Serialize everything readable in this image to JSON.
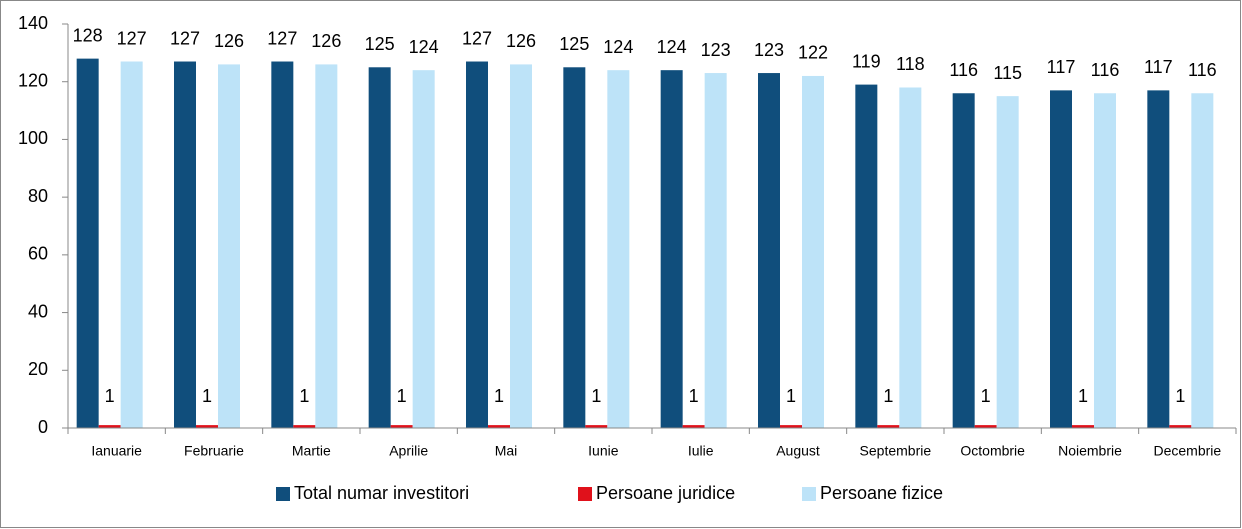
{
  "chart_data": {
    "type": "bar",
    "categories": [
      "Ianuarie",
      "Februarie",
      "Martie",
      "Aprilie",
      "Mai",
      "Iunie",
      "Iulie",
      "August",
      "Septembrie",
      "Octombrie",
      "Noiembrie",
      "Decembrie"
    ],
    "series": [
      {
        "name": "Total numar investitori",
        "color": "#104e7c",
        "values": [
          128,
          127,
          127,
          125,
          127,
          125,
          124,
          123,
          119,
          116,
          117,
          117
        ]
      },
      {
        "name": "Persoane juridice",
        "color": "#e0111b",
        "values": [
          1,
          1,
          1,
          1,
          1,
          1,
          1,
          1,
          1,
          1,
          1,
          1
        ]
      },
      {
        "name": "Persoane fizice",
        "color": "#bde3f8",
        "values": [
          127,
          126,
          126,
          124,
          126,
          124,
          123,
          122,
          118,
          115,
          116,
          116
        ]
      }
    ],
    "ylim": [
      0,
      140
    ],
    "yticks": [
      0,
      20,
      40,
      60,
      80,
      100,
      120,
      140
    ],
    "grid": false,
    "legend": "bottom"
  }
}
